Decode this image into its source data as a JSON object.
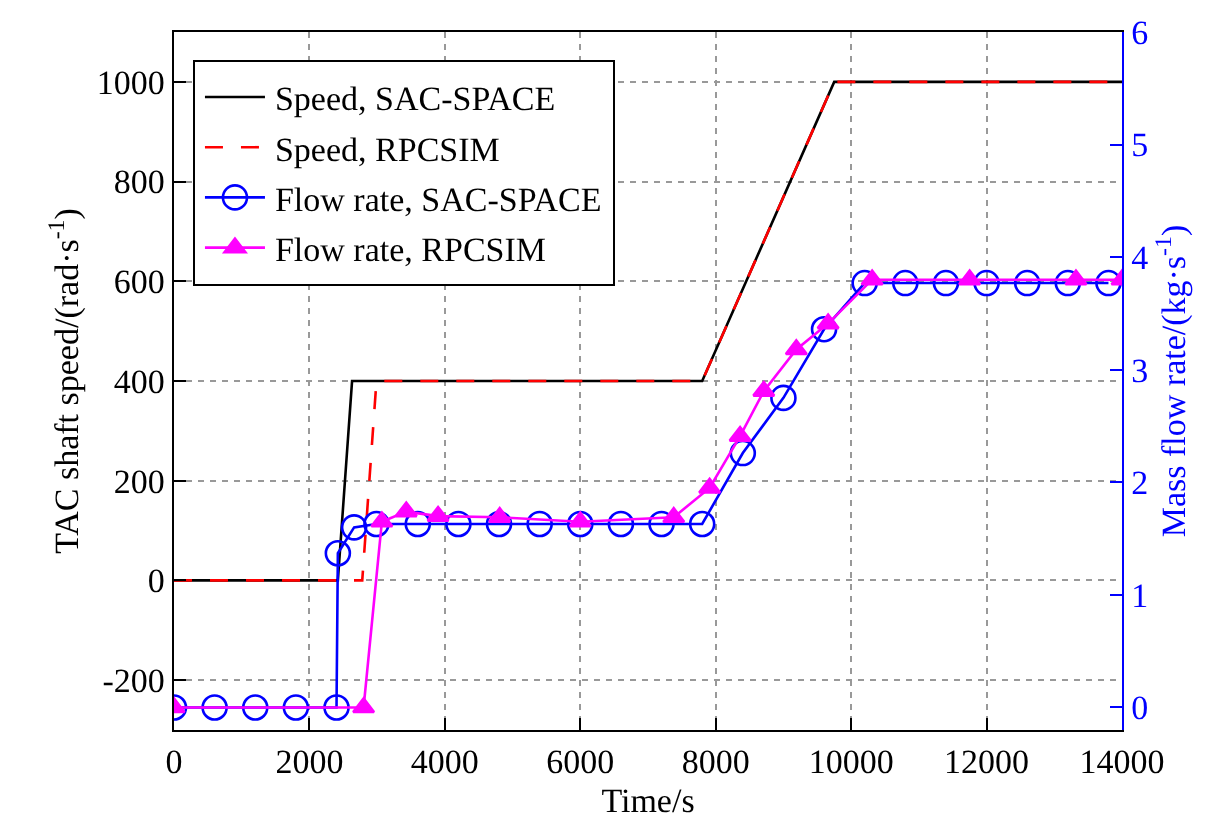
{
  "chart_data": {
    "type": "line",
    "xlabel": "Time/s",
    "ylabel": "TAC shaft speed/(rad·s$^{-1}$)",
    "y2label": "Mass flow rate/(kg·s$^{-1}$)",
    "xlim": [
      0,
      14000
    ],
    "xticks": [
      0,
      2000,
      4000,
      6000,
      8000,
      10000,
      12000,
      14000
    ],
    "ylim": [
      -300,
      1100
    ],
    "yticks": [
      -200,
      0,
      200,
      400,
      600,
      800,
      1000
    ],
    "y2lim": [
      -0.2,
      6
    ],
    "y2ticks": [
      0,
      1,
      2,
      3,
      4,
      5,
      6
    ],
    "grid": true,
    "legend": "top left",
    "series": [
      {
        "name": "Speed, SAC-SPACE",
        "color": "#000000",
        "line_style": "solid",
        "marker": "none",
        "x": [
          0,
          2420,
          2630,
          7800,
          9750,
          14000
        ],
        "values": [
          0,
          0,
          400,
          400,
          1000,
          1000
        ]
      },
      {
        "name": "Speed, RPCSIM",
        "color": "#ff0000",
        "line_style": "dashed",
        "marker": "none",
        "x": [
          0,
          2780,
          2990,
          7800,
          9750,
          14000
        ],
        "values": [
          0,
          0,
          400,
          400,
          1000,
          1000
        ]
      },
      {
        "name": "Flow rate, SAC-SPACE",
        "color": "#0000ff",
        "line_style": "solid",
        "marker": "circle",
        "axis": "y2",
        "x": [
          0,
          600,
          1200,
          1800,
          2400,
          2420,
          2660,
          2990,
          3600,
          4200,
          4800,
          5400,
          6000,
          6600,
          7200,
          7800,
          8400,
          9000,
          9600,
          10200,
          10800,
          11400,
          12000,
          12600,
          13200,
          13800
        ],
        "values": [
          0,
          0,
          0,
          0,
          0,
          1.37,
          1.6,
          1.63,
          1.63,
          1.63,
          1.63,
          1.63,
          1.63,
          1.63,
          1.63,
          1.63,
          2.26,
          2.75,
          3.36,
          3.77,
          3.77,
          3.77,
          3.77,
          3.77,
          3.77,
          3.77
        ]
      },
      {
        "name": "Flow rate, RPCSIM",
        "color": "#ff00ff",
        "line_style": "solid",
        "marker": "triangle",
        "axis": "y2",
        "x": [
          0,
          2800,
          3070,
          3430,
          3900,
          4810,
          6000,
          7380,
          7910,
          8360,
          8710,
          9190,
          9660,
          10310,
          11750,
          13320,
          14000
        ],
        "values": [
          0,
          0,
          1.65,
          1.74,
          1.7,
          1.69,
          1.65,
          1.69,
          1.95,
          2.41,
          2.81,
          3.18,
          3.41,
          3.8,
          3.8,
          3.8,
          3.8
        ]
      }
    ]
  }
}
